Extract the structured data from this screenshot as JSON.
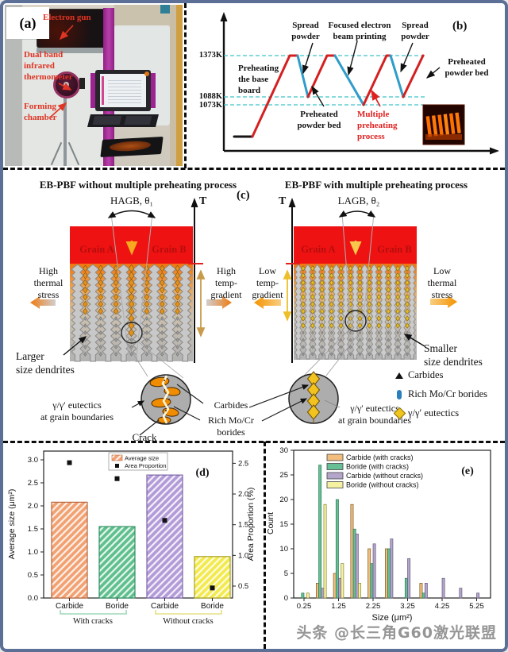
{
  "figure": {
    "watermark": "头条 @长三角G60激光联盟"
  },
  "panel_a": {
    "label": "(a)",
    "electron_gun": "Electron gun",
    "thermometer": "Dual band\ninfrared\nthermometer",
    "forming_chamber": "Forming\nchamber"
  },
  "panel_b": {
    "label": "(b)",
    "temp_ticks": [
      "1373K",
      "1088K",
      "1073K"
    ],
    "spread_powder_1": "Spread\npowder",
    "focused_beam": "Focused electron\nbeam printing",
    "spread_powder_2": "Spread\npowder",
    "preheating_base": "Preheating\nthe base\nboard",
    "preheated_bed_1": "Preheated\npowder bed",
    "multiple_preheating": "Multiple\npreheating\nprocess",
    "preheated_bed_2": "Preheated\npowder bed"
  },
  "panel_c": {
    "label": "(c)",
    "left_title": "EB-PBF without multiple preheating process",
    "right_title": "EB-PBF with multiple preheating process",
    "hagb": "HAGB, θ₁",
    "lagb": "LAGB, θ₂",
    "t_axis": "T",
    "grain_a": "Grain A",
    "grain_b": "Grain B",
    "high_thermal_stress": "High\nthermal\nstress",
    "high_temp_gradient": "High\ntemp-\ngradient",
    "low_temp_gradient": "Low\ntemp-\ngradient",
    "low_thermal_stress": "Low\nthermal\nstress",
    "larger_dendrites": "Larger\nsize dendrites",
    "smaller_dendrites": "Smaller\nsize dendrites",
    "eutectics_left": "γ/γ′ eutectics\nat grain boundaries",
    "crack": "Crack",
    "carbides": "Carbides",
    "rich_borides": "Rich Mo/Cr\nborides",
    "eutectics_right": "γ/γ′ eutectics\nat grain boundaries",
    "legend": [
      {
        "marker": "triangle",
        "label": "Carbides"
      },
      {
        "marker": "capsule",
        "label": "Rich Mo/Cr borides"
      },
      {
        "marker": "diamond",
        "label": "γ/γ′ eutectics"
      }
    ]
  },
  "chart_data": [
    {
      "type": "bar",
      "panel": "(d)",
      "categories": [
        "Carbide",
        "Boride",
        "Carbide",
        "Boride"
      ],
      "group_labels": [
        "With cracks",
        "Without cracks"
      ],
      "series": [
        {
          "name": "Average size",
          "type": "bar",
          "values": [
            2.08,
            1.55,
            2.67,
            0.9
          ],
          "colors": [
            "#f2a172",
            "#5fc08e",
            "#b29bd8",
            "#f3ea4e"
          ],
          "edge_colors": [
            "#b8643c",
            "#2f8f62",
            "#7a63a8",
            "#a89f20"
          ]
        },
        {
          "name": "Area Proportion",
          "type": "scatter",
          "color": "#111111",
          "values": [
            2.51,
            2.25,
            1.57,
            0.47
          ]
        }
      ],
      "ylabel_left": "Average size (μm²)",
      "yticks_left": [
        0,
        0.5,
        1.0,
        1.5,
        2.0,
        2.5,
        3.0
      ],
      "ylim_left": [
        0,
        3.2
      ],
      "ylabel_right": "Area Proportion (%)",
      "yticks_right": [
        0.5,
        1.0,
        1.5,
        2.0,
        2.5
      ],
      "ylim_right": [
        0.31,
        2.71
      ],
      "legend_position": "top-center"
    },
    {
      "type": "bar",
      "panel": "(e)",
      "xlabel": "Size (μm²)",
      "ylabel": "Count",
      "ylim": [
        0,
        30
      ],
      "yticks": [
        0,
        5,
        10,
        15,
        20,
        25,
        30
      ],
      "xticks": [
        0.25,
        1.25,
        2.25,
        3.25,
        4.25,
        5.25
      ],
      "bins": [
        0.25,
        0.75,
        1.25,
        1.75,
        2.25,
        2.75,
        3.25,
        3.75,
        4.25,
        4.75,
        5.25
      ],
      "series": [
        {
          "name": "Carbide (with cracks)",
          "color": "#f2bd7d",
          "edge": "#7a5a20",
          "values": [
            0,
            3,
            5,
            19,
            10,
            10,
            0,
            3,
            0,
            0,
            0
          ]
        },
        {
          "name": "Boride (with cracks)",
          "color": "#66bf95",
          "edge": "#2e7a55",
          "values": [
            1,
            27,
            20,
            14,
            7,
            10,
            4,
            1,
            0,
            0,
            0
          ]
        },
        {
          "name": "Carbide (without cracks)",
          "color": "#b4a6ca",
          "edge": "#665a80",
          "values": [
            0,
            2,
            4,
            13,
            11,
            12,
            8,
            3,
            4,
            2,
            1
          ]
        },
        {
          "name": "Boride (without cracks)",
          "color": "#f4f1a2",
          "edge": "#8a8430",
          "values": [
            1,
            19,
            7,
            3,
            0,
            0,
            0,
            0,
            0,
            0,
            0
          ]
        }
      ],
      "legend_position": "top-center"
    }
  ]
}
